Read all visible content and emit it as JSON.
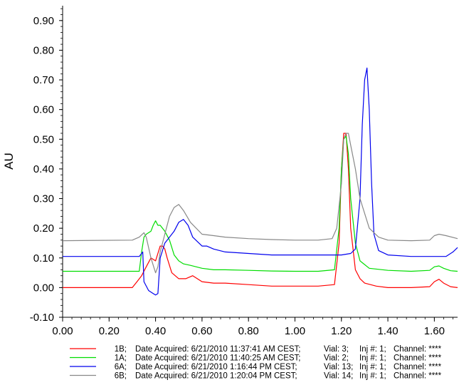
{
  "chart_data": {
    "type": "line",
    "title": "",
    "xlabel": "",
    "ylabel": "AU",
    "xlim": [
      0.0,
      1.7
    ],
    "ylim": [
      -0.1,
      0.95
    ],
    "xticks": [
      "0.00",
      "0.20",
      "0.40",
      "0.60",
      "0.80",
      "1.00",
      "1.20",
      "1.40",
      "1.60"
    ],
    "yticks": [
      "-0.10",
      "0.00",
      "0.10",
      "0.20",
      "0.30",
      "0.40",
      "0.50",
      "0.60",
      "0.70",
      "0.80",
      "0.90"
    ],
    "grid": false,
    "legend_position": "bottom",
    "series": [
      {
        "color": "#ff0000",
        "legend": {
          "name": "1B;",
          "date": "Date Acquired: 6/21/2010 11:37:41 AM CEST;",
          "vial": "Vial: 3;",
          "inj": "Inj #: 1;",
          "channel": "Channel: ****"
        },
        "x": [
          0.0,
          0.3,
          0.32,
          0.34,
          0.36,
          0.38,
          0.4,
          0.42,
          0.43,
          0.44,
          0.45,
          0.47,
          0.5,
          0.53,
          0.56,
          0.6,
          0.65,
          0.7,
          0.8,
          0.9,
          1.0,
          1.1,
          1.17,
          1.19,
          1.2,
          1.21,
          1.22,
          1.23,
          1.24,
          1.26,
          1.28,
          1.3,
          1.35,
          1.4,
          1.5,
          1.58,
          1.6,
          1.62,
          1.64,
          1.67,
          1.7
        ],
        "y": [
          0.0,
          0.0,
          0.02,
          0.04,
          0.07,
          0.1,
          0.09,
          0.14,
          0.14,
          0.13,
          0.1,
          0.05,
          0.03,
          0.03,
          0.04,
          0.02,
          0.015,
          0.015,
          0.01,
          0.005,
          0.005,
          0.005,
          0.01,
          0.15,
          0.4,
          0.52,
          0.52,
          0.4,
          0.2,
          0.06,
          0.03,
          0.015,
          0.005,
          0.0,
          0.0,
          0.003,
          0.02,
          0.028,
          0.015,
          0.003,
          0.0
        ]
      },
      {
        "color": "#00dd00",
        "legend": {
          "name": "1A;",
          "date": "Date Acquired: 6/21/2010 11:40:25 AM CEST;",
          "vial": "Vial: 2;",
          "inj": "Inj #: 1;",
          "channel": "Channel: ****"
        },
        "x": [
          0.0,
          0.33,
          0.34,
          0.35,
          0.36,
          0.38,
          0.39,
          0.4,
          0.41,
          0.42,
          0.44,
          0.46,
          0.48,
          0.5,
          0.52,
          0.55,
          0.6,
          0.65,
          0.7,
          0.8,
          0.9,
          1.0,
          1.1,
          1.17,
          1.19,
          1.2,
          1.21,
          1.22,
          1.23,
          1.24,
          1.26,
          1.28,
          1.32,
          1.4,
          1.5,
          1.58,
          1.6,
          1.62,
          1.64,
          1.67,
          1.7
        ],
        "y": [
          0.055,
          0.055,
          0.12,
          0.17,
          0.18,
          0.19,
          0.21,
          0.225,
          0.21,
          0.21,
          0.19,
          0.16,
          0.11,
          0.09,
          0.08,
          0.075,
          0.065,
          0.06,
          0.06,
          0.058,
          0.056,
          0.055,
          0.055,
          0.06,
          0.2,
          0.4,
          0.5,
          0.51,
          0.45,
          0.3,
          0.15,
          0.09,
          0.065,
          0.058,
          0.055,
          0.058,
          0.07,
          0.073,
          0.065,
          0.057,
          0.055
        ]
      },
      {
        "color": "#0000ee",
        "legend": {
          "name": "6A;",
          "date": "Date Acquired: 6/21/2010 1:16:44 PM CEST;",
          "vial": "Vial: 13;",
          "inj": "Inj #: 1;",
          "channel": "Channel: ****"
        },
        "x": [
          0.0,
          0.33,
          0.345,
          0.35,
          0.37,
          0.39,
          0.4,
          0.41,
          0.42,
          0.44,
          0.46,
          0.48,
          0.5,
          0.52,
          0.54,
          0.56,
          0.6,
          0.62,
          0.65,
          0.7,
          0.8,
          0.9,
          1.0,
          1.1,
          1.2,
          1.24,
          1.26,
          1.28,
          1.29,
          1.3,
          1.31,
          1.32,
          1.33,
          1.34,
          1.36,
          1.4,
          1.5,
          1.6,
          1.65,
          1.68,
          1.7
        ],
        "y": [
          0.105,
          0.105,
          0.12,
          0.02,
          -0.01,
          -0.02,
          -0.025,
          -0.02,
          0.1,
          0.15,
          0.17,
          0.19,
          0.22,
          0.23,
          0.21,
          0.17,
          0.14,
          0.14,
          0.13,
          0.12,
          0.115,
          0.11,
          0.11,
          0.11,
          0.11,
          0.115,
          0.13,
          0.3,
          0.55,
          0.7,
          0.74,
          0.6,
          0.35,
          0.18,
          0.125,
          0.11,
          0.105,
          0.105,
          0.105,
          0.12,
          0.135
        ]
      },
      {
        "color": "#888888",
        "legend": {
          "name": "6B;",
          "date": "Date Acquired: 6/21/2010 1:20:04 PM CEST;",
          "vial": "Vial: 14;",
          "inj": "Inj #: 1;",
          "channel": "Channel: ****"
        },
        "x": [
          0.0,
          0.3,
          0.33,
          0.35,
          0.36,
          0.38,
          0.4,
          0.41,
          0.42,
          0.44,
          0.46,
          0.48,
          0.5,
          0.52,
          0.55,
          0.6,
          0.65,
          0.7,
          0.8,
          0.9,
          1.0,
          1.1,
          1.16,
          1.18,
          1.2,
          1.21,
          1.22,
          1.23,
          1.24,
          1.26,
          1.28,
          1.32,
          1.36,
          1.4,
          1.5,
          1.58,
          1.6,
          1.62,
          1.65,
          1.7
        ],
        "y": [
          0.158,
          0.16,
          0.17,
          0.185,
          0.17,
          0.1,
          0.05,
          0.07,
          0.12,
          0.18,
          0.24,
          0.27,
          0.28,
          0.26,
          0.22,
          0.18,
          0.175,
          0.17,
          0.165,
          0.162,
          0.16,
          0.16,
          0.165,
          0.2,
          0.35,
          0.5,
          0.52,
          0.52,
          0.48,
          0.4,
          0.3,
          0.2,
          0.17,
          0.16,
          0.158,
          0.16,
          0.175,
          0.18,
          0.175,
          0.165
        ]
      }
    ]
  }
}
